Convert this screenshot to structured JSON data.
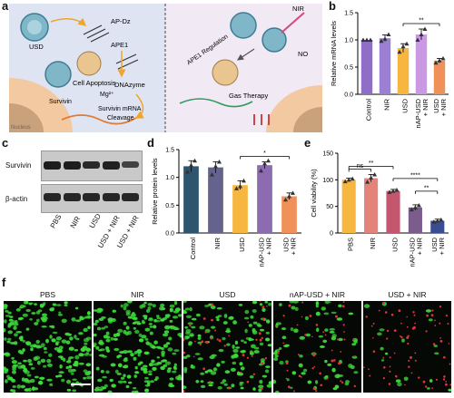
{
  "panel_labels": {
    "a": "a",
    "b": "b",
    "c": "c",
    "d": "d",
    "e": "e",
    "f": "f"
  },
  "schematic": {
    "left": {
      "usd": "USD",
      "ap_dz": "AP-Dz",
      "ape1": "APE1",
      "dnazyme": "DNAzyme",
      "cell_apoptosis": "Cell Apoptosis",
      "mg": "Mg²⁺",
      "survivin": "Survivin",
      "mrna_cleavage_l1": "Survivin mRNA",
      "mrna_cleavage_l2": "Cleavage",
      "nucleus": "Nucleus"
    },
    "right": {
      "nir": "NIR",
      "no": "NO",
      "ape1_regulation": "APE1 Regulation",
      "gas_therapy": "Gas Therapy"
    },
    "colors": {
      "left_bg": "#dfe4f3",
      "right_bg": "#f1e9f4",
      "cell": "#f3c9a2",
      "nucleus": "#c9a27c"
    }
  },
  "western_blot": {
    "rows": [
      "Survivin",
      "β-actin"
    ],
    "lanes": [
      "PBS",
      "NIR",
      "USD",
      "USD + NIR",
      "USD + NIR"
    ],
    "survivin_intensity": [
      1.0,
      1.0,
      0.85,
      0.95,
      0.55
    ],
    "actin_intensity": [
      1.0,
      1.0,
      1.0,
      1.0,
      1.0
    ]
  },
  "fluorescence": {
    "titles": [
      "PBS",
      "NIR",
      "USD",
      "nAP-USD + NIR",
      "USD + NIR"
    ],
    "live_fraction": [
      1.0,
      1.0,
      0.65,
      0.35,
      0.08
    ],
    "dead_fraction": [
      0.0,
      0.0,
      0.25,
      0.3,
      0.45
    ]
  },
  "chart_data": [
    {
      "panel": "b",
      "type": "bar",
      "categories": [
        "Control",
        "NIR",
        "USD",
        "nAP-USD\n+ NIR",
        "USD\n+ NIR"
      ],
      "values": [
        1.0,
        1.03,
        0.85,
        1.1,
        0.62
      ],
      "errors": [
        0.0,
        0.06,
        0.08,
        0.1,
        0.04
      ],
      "points": [
        [
          1.0,
          1.0,
          1.0
        ],
        [
          0.98,
          1.02,
          1.1
        ],
        [
          0.78,
          0.88,
          0.93
        ],
        [
          1.0,
          1.1,
          1.2
        ],
        [
          0.58,
          0.62,
          0.66
        ]
      ],
      "colors": [
        "#8f6ec7",
        "#9b7fd3",
        "#f7b640",
        "#c99ae3",
        "#f0915a"
      ],
      "ylabel": "Relative mRNA levels",
      "ylim": [
        0,
        1.5
      ],
      "yticks": [
        0.0,
        0.5,
        1.0,
        1.5
      ],
      "significance": [
        {
          "from": 2,
          "to": 4,
          "label": "**"
        }
      ]
    },
    {
      "panel": "d",
      "type": "bar",
      "categories": [
        "Control",
        "NIR",
        "USD",
        "nAP-USD\n+ NIR",
        "USD\n+ NIR"
      ],
      "values": [
        1.2,
        1.18,
        0.86,
        1.22,
        0.66
      ],
      "errors": [
        0.1,
        0.1,
        0.08,
        0.06,
        0.06
      ],
      "points": [
        [
          1.1,
          1.22,
          1.3
        ],
        [
          1.05,
          1.2,
          1.28
        ],
        [
          0.8,
          0.84,
          0.94
        ],
        [
          1.12,
          1.25,
          1.3
        ],
        [
          0.6,
          0.66,
          0.72
        ]
      ],
      "colors": [
        "#2e556e",
        "#64638d",
        "#f7b640",
        "#8d6bb0",
        "#f0915a"
      ],
      "ylabel": "Relative protein levels",
      "ylim": [
        0,
        1.5
      ],
      "yticks": [
        0.0,
        0.5,
        1.0,
        1.5
      ],
      "significance": [
        {
          "from": 2,
          "to": 4,
          "label": "*"
        }
      ]
    },
    {
      "panel": "e",
      "type": "bar",
      "categories": [
        "PBS",
        "NIR",
        "USD",
        "nAP-USD\n+ NIR",
        "USD\n+ NIR"
      ],
      "values": [
        100,
        103,
        79,
        48,
        23
      ],
      "errors": [
        3,
        7,
        3,
        5,
        3
      ],
      "points": [
        [
          97,
          100,
          102
        ],
        [
          96,
          104,
          110
        ],
        [
          77,
          79,
          81
        ],
        [
          44,
          48,
          52
        ],
        [
          21,
          23,
          25
        ]
      ],
      "colors": [
        "#f7b640",
        "#e38379",
        "#c4576d",
        "#7c5c8c",
        "#3a4c92"
      ],
      "ylabel": "Cell viability (%)",
      "ylim": [
        0,
        150
      ],
      "yticks": [
        0,
        50,
        100,
        150
      ],
      "significance": [
        {
          "from": 0,
          "to": 1,
          "label": "ns"
        },
        {
          "from": 0,
          "to": 2,
          "label": "**"
        },
        {
          "from": 2,
          "to": 4,
          "label": "****"
        },
        {
          "from": 3,
          "to": 4,
          "label": "**"
        }
      ]
    }
  ]
}
